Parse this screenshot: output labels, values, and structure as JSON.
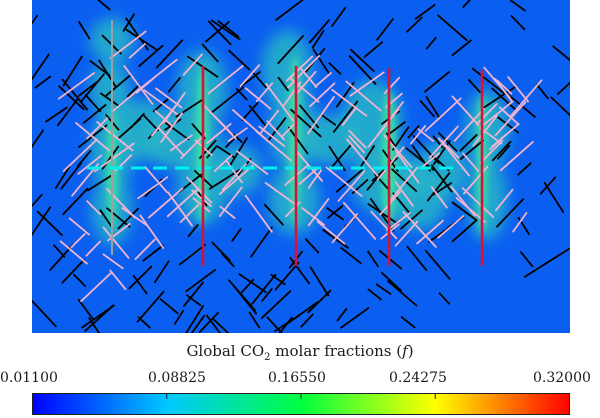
{
  "colorbar": {
    "title_prefix": "Global CO",
    "title_subscript": "2",
    "title_middle": " molar fractions (",
    "title_variable": "f",
    "title_suffix": ")",
    "ticks": [
      "0.01100",
      "0.08825",
      "0.16550",
      "0.24275",
      "0.32000"
    ],
    "range": [
      0.011,
      0.32
    ],
    "colormap": [
      "#0000ff",
      "#00c8ff",
      "#00ff40",
      "#ffff00",
      "#ff0000"
    ]
  },
  "field": {
    "background_color": "#0b5ff0",
    "natural_fracture_color": "#000000",
    "connected_fracture_color": "#f0b4d2",
    "injector_color": "#00f0f0",
    "producer_color": "#d2143c"
  }
}
